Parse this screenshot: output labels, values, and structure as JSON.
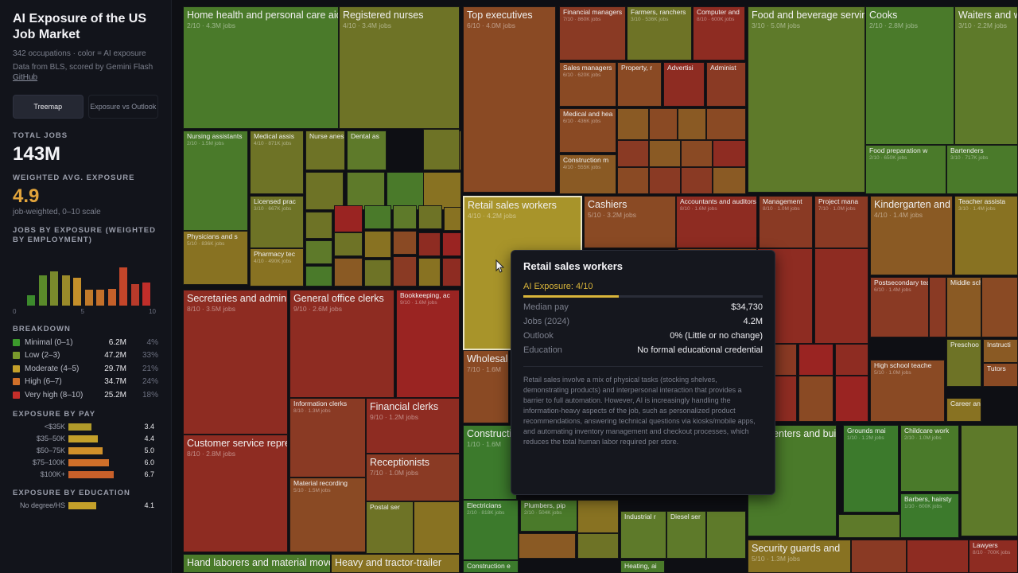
{
  "sidebar": {
    "title": "AI Exposure of the US Job Market",
    "subtitle": "342 occupations · color = AI exposure",
    "data_from": "Data from BLS, scored by Gemini Flash",
    "github": "GitHub",
    "tabs": [
      {
        "label": "Treemap"
      },
      {
        "label": "Exposure vs Outlook"
      }
    ],
    "total_jobs_label": "TOTAL JOBS",
    "total_jobs": "143M",
    "weighted_label": "WEIGHTED AVG. EXPOSURE",
    "weighted": "4.9",
    "weighted_note": "job-weighted, 0–10 scale",
    "hist_label": "JOBS BY EXPOSURE (WEIGHTED BY EMPLOYMENT)",
    "hist_axis": [
      "0",
      "5",
      "10"
    ],
    "hist_values": [
      0.18,
      0.55,
      0.62,
      0.55,
      0.5,
      0.28,
      0.28,
      0.3,
      0.68,
      0.38,
      0.42
    ],
    "hist_colors": [
      "#3c8a2c",
      "#5a8a2a",
      "#7a8a2c",
      "#9a8a2a",
      "#c48f2a",
      "#c07a2a",
      "#c4702a",
      "#c4602a",
      "#c4462a",
      "#b83a2a",
      "#c02e2a"
    ],
    "breakdown_label": "BREAKDOWN",
    "breakdown": [
      {
        "label": "Minimal (0–1)",
        "value": "6.2M",
        "pct": "4%",
        "color": "#3c9a2c"
      },
      {
        "label": "Low (2–3)",
        "value": "47.2M",
        "pct": "33%",
        "color": "#7a9a2c"
      },
      {
        "label": "Moderate (4–5)",
        "value": "29.7M",
        "pct": "21%",
        "color": "#c4a02a"
      },
      {
        "label": "High (6–7)",
        "value": "34.7M",
        "pct": "24%",
        "color": "#d0702a"
      },
      {
        "label": "Very high (8–10)",
        "value": "25.2M",
        "pct": "18%",
        "color": "#c42e2a"
      }
    ],
    "pay_label": "EXPOSURE BY PAY",
    "pay": [
      {
        "label": "<$35K",
        "value": "3.4",
        "fill": 0.34,
        "color": "#b09a2a"
      },
      {
        "label": "$35–50K",
        "value": "4.4",
        "fill": 0.44,
        "color": "#c4a02a"
      },
      {
        "label": "$50–75K",
        "value": "5.0",
        "fill": 0.5,
        "color": "#d0902a"
      },
      {
        "label": "$75–100K",
        "value": "6.0",
        "fill": 0.6,
        "color": "#d0702a"
      },
      {
        "label": "$100K+",
        "value": "6.7",
        "fill": 0.67,
        "color": "#c8602a"
      }
    ],
    "edu_label": "EXPOSURE BY EDUCATION",
    "edu": [
      {
        "label": "No degree/HS",
        "value": "4.1",
        "fill": 0.41,
        "color": "#c4a02a"
      }
    ]
  },
  "treemap": {
    "cells": [
      {
        "name": "Home health and personal care aides",
        "meta": "2/10 · 4.3M jobs",
        "c": "c1"
      },
      {
        "name": "Registered nurses",
        "meta": "4/10 · 3.4M jobs",
        "c": "c3"
      },
      {
        "name": "Top executives",
        "meta": "6/10 · 4.0M jobs",
        "c": "c6"
      },
      {
        "name": "Financial managers",
        "meta": "7/10 · 860K jobs",
        "c": "c7"
      },
      {
        "name": "Farmers, ranchers",
        "meta": "3/10 · 536K jobs",
        "c": "c3"
      },
      {
        "name": "Computer and",
        "meta": "8/10 · 600K jobs",
        "c": "c8"
      },
      {
        "name": "Food and beverage serving workers",
        "meta": "3/10 · 5.0M jobs",
        "c": "c2"
      },
      {
        "name": "Cooks",
        "meta": "2/10 · 2.8M jobs",
        "c": "c1"
      },
      {
        "name": "Waiters and wa",
        "meta": "3/10 · 2.2M jobs",
        "c": "c2"
      },
      {
        "name": "Sales managers",
        "meta": "6/10 · 620K jobs",
        "c": "c6"
      },
      {
        "name": "Property, r",
        "meta": "",
        "c": "c6"
      },
      {
        "name": "Advertisi",
        "meta": "",
        "c": "c8"
      },
      {
        "name": "Administ",
        "meta": "",
        "c": "c7"
      },
      {
        "name": "Medical and hea",
        "meta": "6/10 · 436K jobs",
        "c": "c6"
      },
      {
        "name": "Construction m",
        "meta": "4/10 · 555K jobs",
        "c": "c5"
      },
      {
        "name": "Nursing assistants",
        "meta": "2/10 · 1.5M jobs",
        "c": "c1"
      },
      {
        "name": "Medical assis",
        "meta": "4/10 · 871K jobs",
        "c": "c3"
      },
      {
        "name": "Nurse anes",
        "meta": "",
        "c": "c3"
      },
      {
        "name": "Dental as",
        "meta": "",
        "c": "c2"
      },
      {
        "name": "Licensed prac",
        "meta": "3/10 · 667K jobs",
        "c": "c3"
      },
      {
        "name": "Physicians and s",
        "meta": "5/10 · 836K jobs",
        "c": "c4"
      },
      {
        "name": "Pharmacy tec",
        "meta": "4/10 · 490K jobs",
        "c": "c4"
      },
      {
        "name": "Food preparation w",
        "meta": "2/10 · 650K jobs",
        "c": "c1"
      },
      {
        "name": "Bartenders",
        "meta": "3/10 · 717K jobs",
        "c": "c1"
      },
      {
        "name": "Retail sales workers",
        "meta": "4/10 · 4.2M jobs",
        "c": "cy"
      },
      {
        "name": "Cashiers",
        "meta": "5/10 · 3.2M jobs",
        "c": "c6"
      },
      {
        "name": "Accountants and auditors",
        "meta": "8/10 · 1.6M jobs",
        "c": "c8"
      },
      {
        "name": "Management",
        "meta": "8/10 · 1.0M jobs",
        "c": "c7"
      },
      {
        "name": "Project mana",
        "meta": "7/10 · 1.0M jobs",
        "c": "c7"
      },
      {
        "name": "Kindergarten and e",
        "meta": "4/10 · 1.4M jobs",
        "c": "c5"
      },
      {
        "name": "Teacher assista",
        "meta": "3/10 · 1.4M jobs",
        "c": "c4"
      },
      {
        "name": "Secretaries and administrative assistants",
        "meta": "8/10 · 3.5M jobs",
        "c": "c8"
      },
      {
        "name": "General office clerks",
        "meta": "9/10 · 2.6M jobs",
        "c": "c8"
      },
      {
        "name": "Bookkeeping, ac",
        "meta": "9/10 · 1.6M jobs",
        "c": "c9"
      },
      {
        "name": "Postsecondary tea",
        "meta": "6/10 · 1.4M jobs",
        "c": "c7"
      },
      {
        "name": "Middle sch",
        "meta": "",
        "c": "c5"
      },
      {
        "name": "Preschoo",
        "meta": "",
        "c": "c3"
      },
      {
        "name": "Instructi",
        "meta": "",
        "c": "c5"
      },
      {
        "name": "High school teache",
        "meta": "5/10 · 1.0M jobs",
        "c": "c6"
      },
      {
        "name": "Tutors",
        "meta": "",
        "c": "c6"
      },
      {
        "name": "Career an",
        "meta": "",
        "c": "c4"
      },
      {
        "name": "Wholesale",
        "meta": "7/10 · 1.6M",
        "c": "c6"
      },
      {
        "name": "Information clerks",
        "meta": "8/10 · 1.3M jobs",
        "c": "c7"
      },
      {
        "name": "Financial clerks",
        "meta": "9/10 · 1.2M jobs",
        "c": "c8"
      },
      {
        "name": "Customer service representatives",
        "meta": "8/10 · 2.8M jobs",
        "c": "c8"
      },
      {
        "name": "Receptionists",
        "meta": "7/10 · 1.0M jobs",
        "c": "c7"
      },
      {
        "name": "Material recording",
        "meta": "5/10 · 1.5M jobs",
        "c": "c6"
      },
      {
        "name": "Postal ser",
        "meta": "",
        "c": "c3"
      },
      {
        "name": "Construction laborers",
        "meta": "1/10 · 1.6M",
        "c": "c0"
      },
      {
        "name": "Electricians",
        "meta": "2/10 · 818K jobs",
        "c": "c0"
      },
      {
        "name": "Plumbers, pip",
        "meta": "2/10 · 504K jobs",
        "c": "c1"
      },
      {
        "name": "Carpenters and building",
        "meta": "",
        "c": "c1"
      },
      {
        "name": "Grounds mai",
        "meta": "1/10 · 1.2M jobs",
        "c": "c0"
      },
      {
        "name": "Childcare work",
        "meta": "2/10 · 1.0M jobs",
        "c": "c1"
      },
      {
        "name": "Barbers, hairsty",
        "meta": "1/10 · 600K jobs",
        "c": "c0"
      },
      {
        "name": "Industrial r",
        "meta": "",
        "c": "c2"
      },
      {
        "name": "Diesel ser",
        "meta": "",
        "c": "c2"
      },
      {
        "name": "Heating, ai",
        "meta": "",
        "c": "c1"
      },
      {
        "name": "Construction e",
        "meta": "",
        "c": "c0"
      },
      {
        "name": "Security guards and",
        "meta": "5/10 · 1.3M jobs",
        "c": "c4"
      },
      {
        "name": "Lawyers",
        "meta": "8/10 · 700K jobs",
        "c": "c8"
      },
      {
        "name": "Hand laborers and material movers",
        "meta": "",
        "c": "c1"
      },
      {
        "name": "Heavy and tractor-trailer",
        "meta": "",
        "c": "c4"
      }
    ]
  },
  "tooltip": {
    "title": "Retail sales workers",
    "exposure": "AI Exposure: 4/10",
    "exposure_fraction": 0.4,
    "rows": [
      {
        "k": "Median pay",
        "v": "$34,730"
      },
      {
        "k": "Jobs (2024)",
        "v": "4.2M"
      },
      {
        "k": "Outlook",
        "v": "0% (Little or no change)"
      },
      {
        "k": "Education",
        "v": "No formal educational credential"
      }
    ],
    "description": "Retail sales involve a mix of physical tasks (stocking shelves, demonstrating products) and interpersonal interaction that provides a barrier to full automation. However, AI is increasingly handling the information-heavy aspects of the job, such as personalized product recommendations, answering technical questions via kiosks/mobile apps, and automating inventory management and checkout processes, which reduces the total human labor required per store."
  }
}
